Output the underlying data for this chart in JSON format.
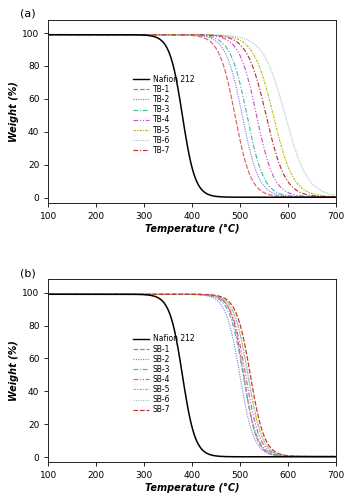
{
  "panel_a_label": "(a)",
  "panel_b_label": "(b)",
  "xlabel": "Temperature (°C)",
  "ylabel": "Weight (%)",
  "xlim": [
    100,
    700
  ],
  "ylim": [
    -3,
    108
  ],
  "xticks": [
    100,
    200,
    300,
    400,
    500,
    600,
    700
  ],
  "yticks": [
    0,
    20,
    40,
    60,
    80,
    100
  ],
  "nafion_label": "Nafion 212",
  "tb_labels": [
    "TB-1",
    "TB-2",
    "TB-3",
    "TB-4",
    "TB-5",
    "TB-6",
    "TB-7"
  ],
  "sb_labels": [
    "SB-1",
    "SB-2",
    "SB-3",
    "SB-4",
    "SB-5",
    "SB-6",
    "SB-7"
  ],
  "series_colors": [
    "#e06060",
    "#8888dd",
    "#44bbaa",
    "#cc55cc",
    "#bbbb00",
    "#99cccc",
    "#bb3333"
  ],
  "nafion_color": "#000000",
  "background_color": "#ffffff",
  "legend_fontsize": 5.5,
  "axis_fontsize": 7,
  "tick_fontsize": 6.5,
  "nafion_midpoint": 380,
  "nafion_steepness": 0.075,
  "tb_midpoints": [
    490,
    505,
    515,
    535,
    570,
    595,
    555
  ],
  "tb_steepness": [
    0.06,
    0.058,
    0.057,
    0.055,
    0.048,
    0.043,
    0.05
  ],
  "sb_midpoints": [
    508,
    500,
    507,
    512,
    517,
    517,
    522
  ],
  "sb_steepness": [
    0.075,
    0.068,
    0.068,
    0.068,
    0.068,
    0.068,
    0.068
  ]
}
